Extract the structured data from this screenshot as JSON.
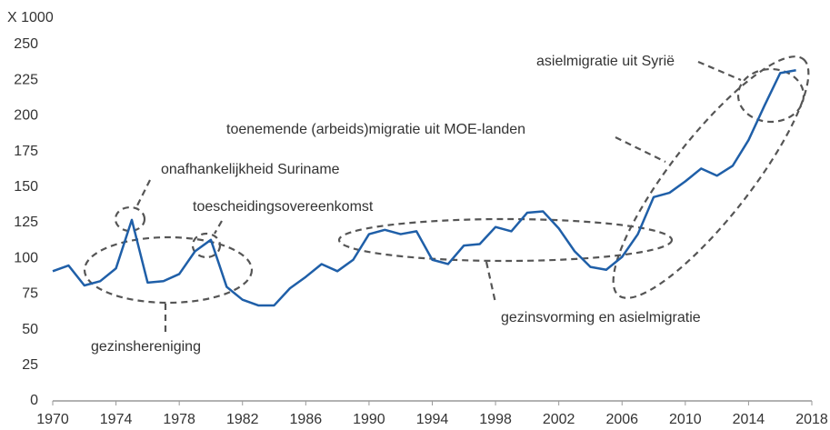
{
  "chart_data": {
    "type": "line",
    "y_unit_label": "X 1000",
    "x": [
      1970,
      1971,
      1972,
      1973,
      1974,
      1975,
      1976,
      1977,
      1978,
      1979,
      1980,
      1981,
      1982,
      1983,
      1984,
      1985,
      1986,
      1987,
      1988,
      1989,
      1990,
      1991,
      1992,
      1993,
      1994,
      1995,
      1996,
      1997,
      1998,
      1999,
      2000,
      2001,
      2002,
      2003,
      2004,
      2005,
      2006,
      2007,
      2008,
      2009,
      2010,
      2011,
      2012,
      2013,
      2014,
      2015,
      2016,
      2017
    ],
    "series": [
      {
        "color": "#1f5fa8",
        "values": [
          91,
          95,
          81,
          84,
          93,
          127,
          83,
          84,
          89,
          105,
          113,
          80,
          71,
          67,
          67,
          79,
          87,
          96,
          91,
          99,
          117,
          120,
          117,
          119,
          99,
          96,
          109,
          110,
          122,
          119,
          132,
          133,
          121,
          105,
          94,
          92,
          101,
          117,
          143,
          146,
          154,
          163,
          158,
          165,
          183,
          207,
          230,
          232
        ]
      }
    ],
    "xlim": [
      1970,
      2018
    ],
    "xticks": [
      1970,
      1974,
      1978,
      1982,
      1986,
      1990,
      1994,
      1998,
      2002,
      2006,
      2010,
      2014,
      2018
    ],
    "ylim": [
      0,
      250
    ],
    "yticks": [
      0,
      25,
      50,
      75,
      100,
      125,
      150,
      175,
      200,
      225,
      250
    ],
    "grid": false,
    "annotations": [
      "onafhankelijkheid Suriname",
      "toescheidingsovereenkomst",
      "gezinshereniging",
      "gezinsvorming en asielmigratie",
      "toenemende (arbeids)migratie uit MOE-landen",
      "asielmigratie uit Syrië"
    ]
  }
}
